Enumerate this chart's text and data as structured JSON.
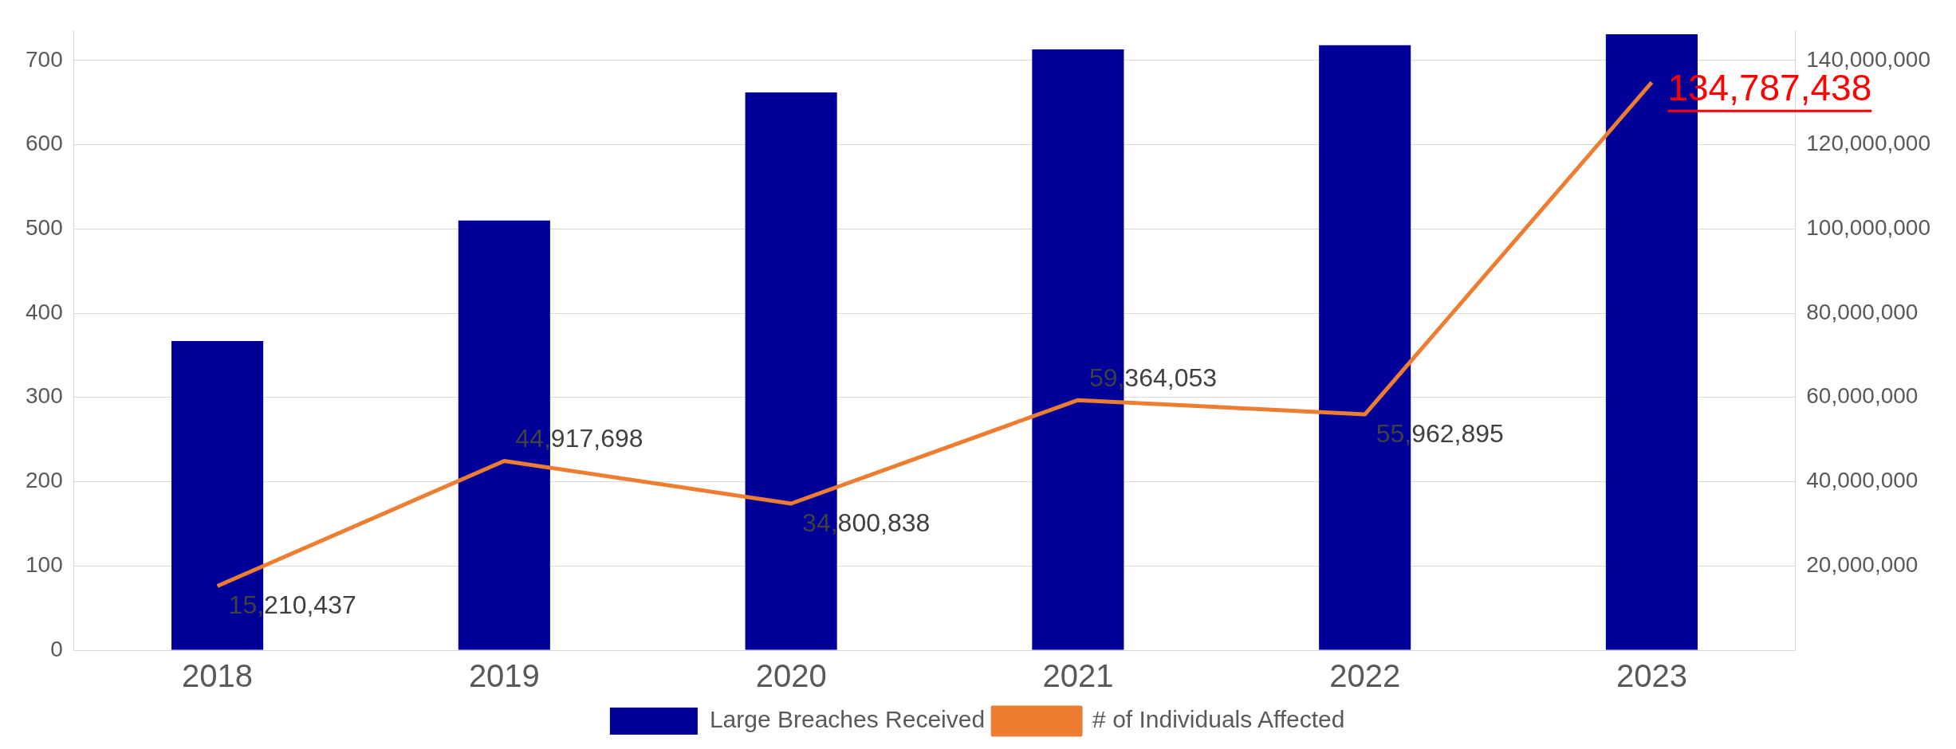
{
  "chart_data": {
    "type": "bar",
    "categories": [
      "2018",
      "2019",
      "2020",
      "2021",
      "2022",
      "2023"
    ],
    "series": [
      {
        "name": "Large Breaches Received",
        "color": "#000099",
        "values": [
          367,
          510,
          662,
          713,
          718,
          731
        ]
      },
      {
        "name": "# of Individuals Affected",
        "type": "line",
        "axis": "y2",
        "color": "#ed7d31",
        "values": [
          15210437,
          44917698,
          34800838,
          59364053,
          55962895,
          134787438
        ],
        "value_labels": [
          "15,210,437",
          "44,917,698",
          "34,800,838",
          "59,364,053",
          "55,962,895",
          "134,787,438"
        ]
      }
    ],
    "ylim": [
      0,
      735
    ],
    "yticks": [
      0,
      100,
      200,
      300,
      400,
      500,
      600,
      700
    ],
    "y2lim": [
      0,
      147000000
    ],
    "y2ticks": [
      {
        "value": 20000000,
        "label": "20,000,000"
      },
      {
        "value": 40000000,
        "label": "40,000,000"
      },
      {
        "value": 60000000,
        "label": "60,000,000"
      },
      {
        "value": 80000000,
        "label": "80,000,000"
      },
      {
        "value": 100000000,
        "label": "100,000,000"
      },
      {
        "value": 120000000,
        "label": "120,000,000"
      },
      {
        "value": 140000000,
        "label": "140,000,000"
      }
    ],
    "grid": "y",
    "legend": "bottom",
    "marker": "none",
    "line_style": "solid"
  }
}
